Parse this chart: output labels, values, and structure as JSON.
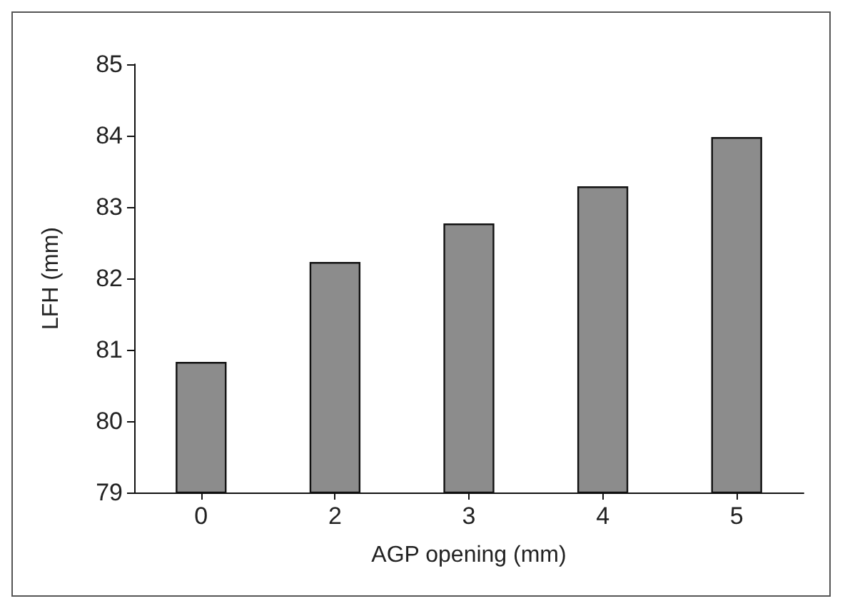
{
  "chart_data": {
    "type": "bar",
    "xlabel": "AGP opening (mm)",
    "ylabel": "LFH (mm)",
    "categories": [
      "0",
      "2",
      "3",
      "4",
      "5"
    ],
    "values": [
      80.83,
      82.23,
      82.77,
      83.29,
      83.98
    ],
    "color": "#8c8c8c",
    "ylim": [
      79,
      85
    ],
    "yticks": [
      79,
      80,
      81,
      82,
      83,
      84,
      85
    ]
  }
}
